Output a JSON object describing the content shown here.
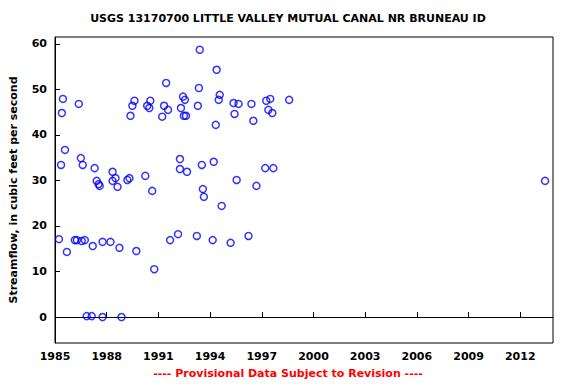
{
  "chart_data": {
    "type": "scatter",
    "title": "USGS 13170700 LITTLE VALLEY MUTUAL CANAL NR BRUNEAU ID",
    "y_label": "Streamflow, in cubic feet per second",
    "annotations": [
      "---- Provisional Data Subject to Revision ----"
    ],
    "color": "#0000ff",
    "marker": "open_circle",
    "grid": false,
    "x": [
      1985.23,
      1985.35,
      1985.4,
      1985.46,
      1985.58,
      1985.69,
      1986.15,
      1986.27,
      1986.38,
      1986.5,
      1986.61,
      1986.55,
      1986.73,
      1986.84,
      1987.13,
      1987.19,
      1987.3,
      1987.42,
      1987.53,
      1987.59,
      1987.76,
      1987.76,
      1988.22,
      1988.34,
      1988.34,
      1988.51,
      1988.63,
      1988.74,
      1988.86,
      1989.2,
      1989.32,
      1989.38,
      1989.49,
      1989.61,
      1989.72,
      1990.24,
      1990.35,
      1990.47,
      1990.53,
      1990.64,
      1990.76,
      1991.22,
      1991.33,
      1991.45,
      1991.56,
      1991.68,
      1992.14,
      1992.25,
      1992.25,
      1992.31,
      1992.43,
      1992.48,
      1992.6,
      1992.54,
      1992.66,
      1993.23,
      1993.29,
      1993.35,
      1993.4,
      1993.52,
      1993.58,
      1993.64,
      1994.15,
      1994.21,
      1994.33,
      1994.38,
      1994.5,
      1994.56,
      1994.67,
      1995.19,
      1995.36,
      1995.42,
      1995.54,
      1995.65,
      1996.23,
      1996.4,
      1996.51,
      1996.69,
      1997.2,
      1997.26,
      1997.38,
      1997.49,
      1997.61,
      1997.67,
      1998.59,
      2013.44
    ],
    "values": [
      17.1,
      33.4,
      44.8,
      47.9,
      36.7,
      14.3,
      16.9,
      16.9,
      46.8,
      34.9,
      33.4,
      16.7,
      16.9,
      0.2,
      0.2,
      15.6,
      32.7,
      29.9,
      29.2,
      28.8,
      0,
      16.5,
      16.5,
      31.9,
      29.9,
      30.5,
      28.6,
      15.2,
      0,
      30.1,
      30.5,
      44.2,
      46.4,
      47.5,
      14.5,
      31,
      46.4,
      45.9,
      47.5,
      27.7,
      10.5,
      44,
      46.4,
      51.4,
      45.5,
      16.9,
      18.2,
      34.7,
      32.5,
      45.9,
      48.4,
      44.2,
      44.2,
      47.7,
      31.9,
      17.8,
      46.4,
      50.3,
      58.7,
      33.4,
      28.1,
      26.4,
      16.9,
      34.1,
      42.2,
      54.3,
      47.7,
      48.8,
      24.4,
      16.3,
      47,
      44.6,
      30.1,
      46.8,
      17.8,
      46.8,
      43.1,
      28.8,
      32.7,
      47.5,
      45.5,
      47.9,
      44.8,
      32.7,
      47.7,
      29.9
    ],
    "xlim": [
      1985,
      2013.9
    ],
    "xticks": [
      1985,
      1988,
      1991,
      1994,
      1997,
      2000,
      2003,
      2006,
      2009,
      2012
    ],
    "ylim": [
      -5.7,
      61.5
    ],
    "yticks": [
      0,
      10,
      20,
      30,
      40,
      50,
      60
    ]
  }
}
